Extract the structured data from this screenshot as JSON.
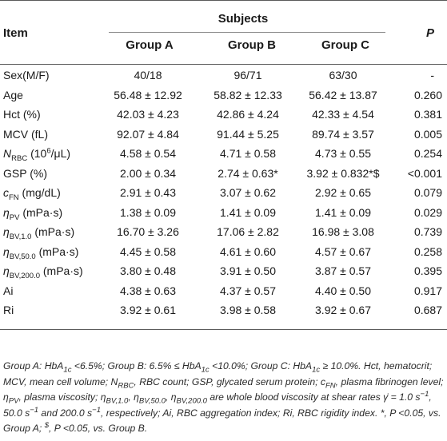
{
  "header": {
    "item": "Item",
    "subjects": "Subjects",
    "p": "P",
    "groups": [
      "Group A",
      "Group B",
      "Group C"
    ]
  },
  "rows": [
    {
      "label": "Sex(M/F)",
      "a": "40/18",
      "b": "96/71",
      "c": "63/30",
      "p": "-"
    },
    {
      "label": "Age",
      "a": "56.48 ± 12.92",
      "b": "58.82 ± 12.33",
      "c": "56.42 ± 13.87",
      "p": "0.260"
    },
    {
      "label": "Hct (%)",
      "a": "42.03 ± 4.23",
      "b": "42.86 ± 4.24",
      "c": "42.33 ± 4.54",
      "p": "0.381"
    },
    {
      "label": "MCV (fL)",
      "a": "92.07 ± 4.84",
      "b": "91.44 ± 5.25",
      "c": "89.74 ± 3.57",
      "p": "0.005"
    },
    {
      "label_main": "N",
      "label_sub": "RBC",
      "label_rest_pre": " (10",
      "label_sup": "6",
      "label_rest_post": "/μL)",
      "a": "4.58 ± 0.54",
      "b": "4.71 ± 0.58",
      "c": "4.73 ± 0.55",
      "p": "0.254"
    },
    {
      "label": "GSP (%)",
      "a": "2.00 ± 0.34",
      "b": "2.74 ± 0.63*",
      "c": "3.92 ± 0.832*$",
      "p": "<0.001"
    },
    {
      "label_main": "c",
      "label_sub": "FN",
      "label_rest": " (mg/dL)",
      "a": "2.91 ± 0.43",
      "b": "3.07 ± 0.62",
      "c": "2.92 ± 0.65",
      "p": "0.079"
    },
    {
      "label_main": "η",
      "label_sub": "PV",
      "label_rest": " (mPa·s)",
      "a": "1.38 ± 0.09",
      "b": "1.41 ± 0.09",
      "c": "1.41 ± 0.09",
      "p": "0.029"
    },
    {
      "label_main": "η",
      "label_sub": "BV,1.0",
      "label_rest": " (mPa·s)",
      "a": "16.70 ± 3.26",
      "b": "17.06 ± 2.82",
      "c": "16.98 ± 3.08",
      "p": "0.739"
    },
    {
      "label_main": "η",
      "label_sub": "BV,50.0",
      "label_rest": " (mPa·s)",
      "a": "4.45 ± 0.58",
      "b": "4.61 ± 0.60",
      "c": "4.57 ± 0.67",
      "p": "0.258"
    },
    {
      "label_main": "η",
      "label_sub": "BV,200.0",
      "label_rest": " (mPa·s)",
      "a": "3.80 ± 0.48",
      "b": "3.91 ± 0.50",
      "c": "3.87 ± 0.57",
      "p": "0.395"
    },
    {
      "label": "Ai",
      "a": "4.38 ± 0.63",
      "b": "4.37 ± 0.57",
      "c": "4.40 ± 0.50",
      "p": "0.917"
    },
    {
      "label": "Ri",
      "a": "3.92 ± 0.61",
      "b": "3.98 ± 0.58",
      "c": "3.92 ± 0.67",
      "p": "0.687"
    }
  ],
  "gsp_marks": {
    "b": "*",
    "c": "*$"
  },
  "footnote": {
    "f1": "Group A: HbA",
    "f1_sub": "1c",
    "f2": " <6.5%; Group B: 6.5% ≤ HbA",
    "f2_sub": "1c",
    "f3": " <10.0%; Group C: HbA",
    "f3_sub": "1c",
    "f4": " ≥ 10.0%. Hct, hematocrit; MCV, mean cell volume; N",
    "f4_sub": "RBC",
    "f5": ", RBC count; GSP, glycated serum protein; c",
    "f5_sub": "FN",
    "f6": ", plasma fibrinogen level; η",
    "f6_sub": "PV",
    "f7": ", plasma viscosity; η",
    "f7_sub": "BV,1.0",
    "f8": ", η",
    "f8_sub": "BV,50.0",
    "f9": ", η",
    "f9_sub": "BV,200.0",
    "f10": " are whole blood viscosity at shear rates γ̇ = 1.0 s",
    "f10_sup": "−1",
    "f11": ", 50.0 s",
    "f11_sup": "−1",
    "f12": " and 200.0 s",
    "f12_sup": "−1",
    "f13": ", respectively; Ai, RBC aggregation index; Ri, RBC rigidity index. *, P <0.05, vs. Group A; ",
    "f13_sup": "$",
    "f14": ", P <0.05, vs. Group B."
  }
}
